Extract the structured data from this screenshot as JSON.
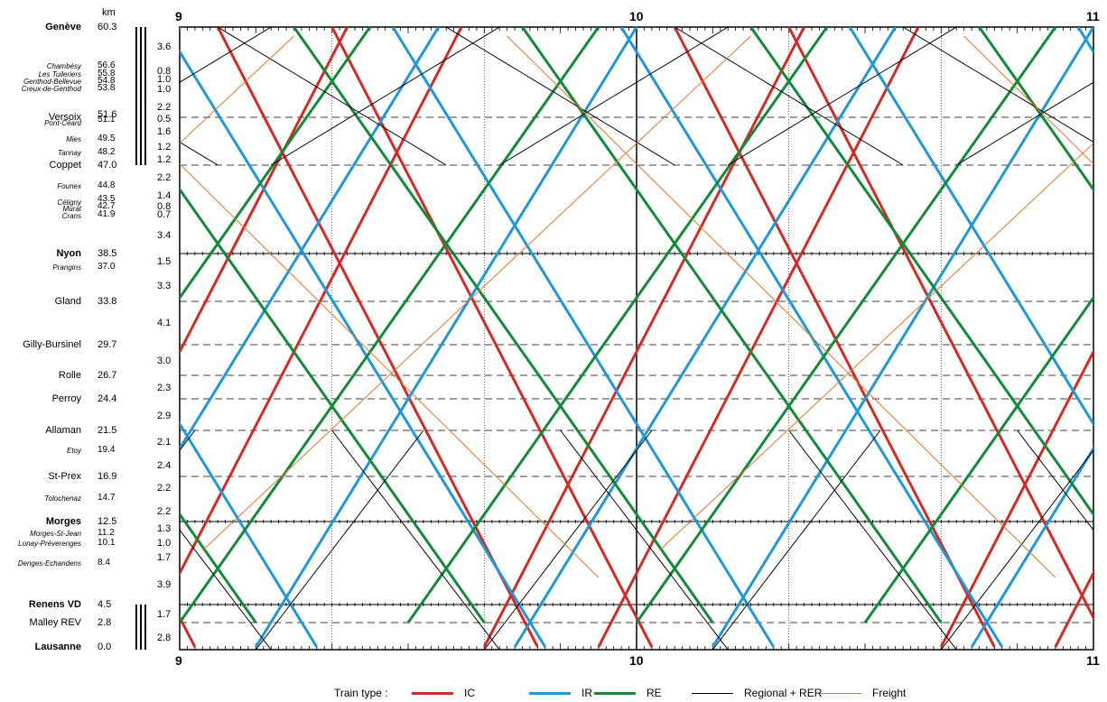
{
  "colors": {
    "IC": "#d42a26",
    "IR": "#1e98d9",
    "RE": "#138a3a",
    "Regional": "#000000",
    "Freight": "#e2762b"
  },
  "km_header": "km",
  "hours": {
    "top": [
      "9",
      "10",
      "11"
    ],
    "bottom": [
      "9",
      "10",
      "11"
    ]
  },
  "stations": [
    {
      "name": "Genève",
      "km": "60.3",
      "type": "major"
    },
    {
      "name": "Chambésy",
      "km": "56.6",
      "type": "minor"
    },
    {
      "name": "Les Tuileriers",
      "km": "55.8",
      "type": "minor"
    },
    {
      "name": "Genthod-Bellevue",
      "km": "54.8",
      "type": "minor"
    },
    {
      "name": "Creux-de-Genthod",
      "km": "53.8",
      "type": "minor"
    },
    {
      "name": "Versoix",
      "km": "51.6",
      "type": "normal"
    },
    {
      "name": "Pont-Céard",
      "km": "51.1",
      "type": "minor"
    },
    {
      "name": "Mies",
      "km": "49.5",
      "type": "minor"
    },
    {
      "name": "Tannay",
      "km": "48.2",
      "type": "minor"
    },
    {
      "name": "Coppet",
      "km": "47.0",
      "type": "normal"
    },
    {
      "name": "Founex",
      "km": "44.8",
      "type": "minor"
    },
    {
      "name": "Céligny",
      "km": "43.5",
      "type": "minor"
    },
    {
      "name": "Murat",
      "km": "42.7",
      "type": "minor"
    },
    {
      "name": "Crans",
      "km": "41.9",
      "type": "minor"
    },
    {
      "name": "Nyon",
      "km": "38.5",
      "type": "major"
    },
    {
      "name": "Prangins",
      "km": "37.0",
      "type": "minor"
    },
    {
      "name": "Gland",
      "km": "33.8",
      "type": "normal"
    },
    {
      "name": "Gilly-Bursinel",
      "km": "29.7",
      "type": "normal"
    },
    {
      "name": "Rolle",
      "km": "26.7",
      "type": "normal"
    },
    {
      "name": "Perroy",
      "km": "24.4",
      "type": "normal"
    },
    {
      "name": "Allaman",
      "km": "21.5",
      "type": "normal"
    },
    {
      "name": "Etoy",
      "km": "19.4",
      "type": "minor"
    },
    {
      "name": "St-Prex",
      "km": "16.9",
      "type": "normal"
    },
    {
      "name": "Tolochenaz",
      "km": "14.7",
      "type": "minor"
    },
    {
      "name": "Morges",
      "km": "12.5",
      "type": "major"
    },
    {
      "name": "Morges-St-Jean",
      "km": "11.2",
      "type": "minor"
    },
    {
      "name": "Lonay-Préverenges",
      "km": "10.1",
      "type": "minor"
    },
    {
      "name": "Denges-Echandens",
      "km": "8.4",
      "type": "minor"
    },
    {
      "name": "Renens VD",
      "km": "4.5",
      "type": "major"
    },
    {
      "name": "Malley REV",
      "km": "2.8",
      "type": "normal"
    },
    {
      "name": "Lausanne",
      "km": "0.0",
      "type": "major"
    }
  ],
  "distances": [
    "3.6",
    "0.8",
    "1.0",
    "1.0",
    "2.2",
    "0.5",
    "1.6",
    "1.2",
    "1.2",
    "2.2",
    "1.4",
    "0.8",
    "0.7",
    "3.4",
    "1.5",
    "3.3",
    "4.1",
    "3.0",
    "2.3",
    "2.9",
    "2.1",
    "2.4",
    "2.2",
    "2.2",
    "1.3",
    "1.0",
    "1.7",
    "3.9",
    "1.7",
    "2.8"
  ],
  "legend": {
    "title": "Train type :",
    "items": [
      {
        "label": "IC",
        "color": "#d42a26",
        "width": 3
      },
      {
        "label": "IR",
        "color": "#1e98d9",
        "width": 3
      },
      {
        "label": "RE",
        "color": "#138a3a",
        "width": 3
      },
      {
        "label": "Regional + RER",
        "color": "#000000",
        "width": 1
      },
      {
        "label": "Freight",
        "color": "#e2762b",
        "width": 1
      }
    ]
  }
}
